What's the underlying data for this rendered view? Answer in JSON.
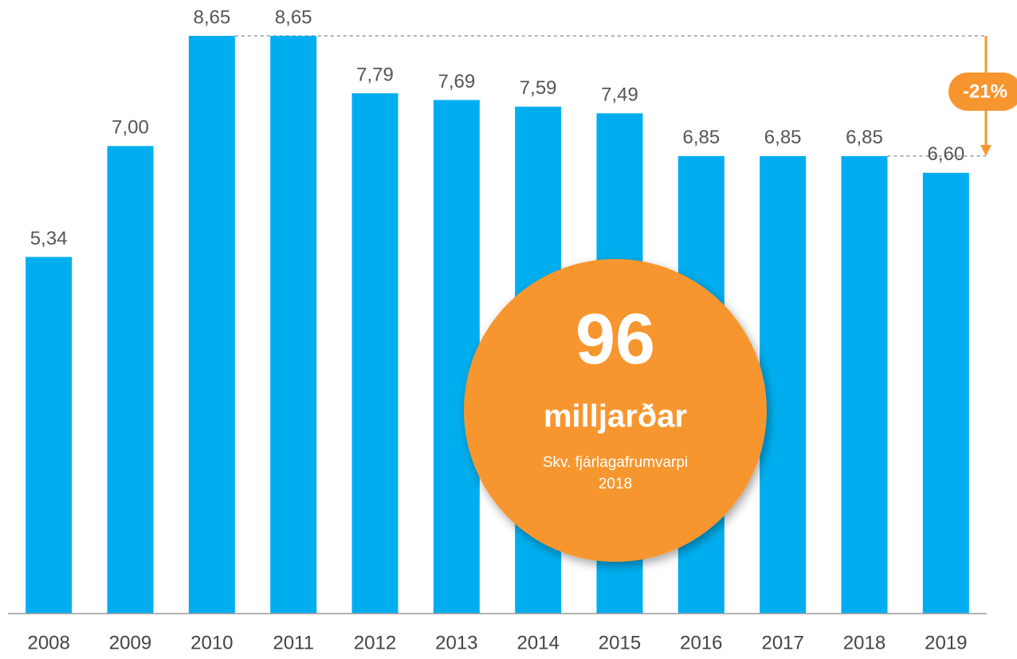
{
  "chart_data": {
    "type": "bar",
    "categories": [
      "2008",
      "2009",
      "2010",
      "2011",
      "2012",
      "2013",
      "2014",
      "2015",
      "2016",
      "2017",
      "2018",
      "2019"
    ],
    "values": [
      5.34,
      7.0,
      8.65,
      8.65,
      7.79,
      7.69,
      7.59,
      7.49,
      6.85,
      6.85,
      6.85,
      6.6
    ],
    "value_labels": [
      "5,34",
      "7,00",
      "8,65",
      "8,65",
      "7,79",
      "7,69",
      "7,59",
      "7,49",
      "6,85",
      "6,85",
      "6,85",
      "6,60"
    ],
    "color": "#00aeef",
    "ylim": [
      0,
      8.65
    ],
    "annotations": {
      "change": "-21%",
      "circle": {
        "number": "96",
        "unit": "milljarðar",
        "note": "Skv. fjárlagafrumvarpi",
        "year": "2018"
      }
    }
  }
}
